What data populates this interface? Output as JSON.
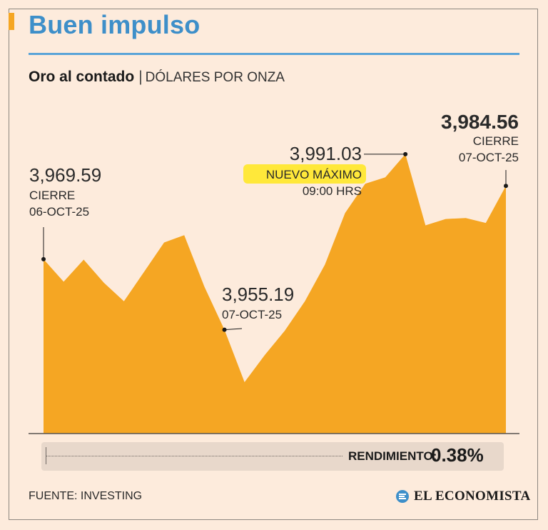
{
  "header": {
    "title": "Buen impulso",
    "subtitle_main": "Oro al contado",
    "subtitle_separator": "|",
    "subtitle_unit": "DÓLARES POR ONZA"
  },
  "chart_data": {
    "type": "area",
    "title": "Oro al contado",
    "ylabel": "DÓLARES POR ONZA",
    "xlabel": "",
    "ylim": [
      3930,
      4000
    ],
    "grid": false,
    "series": [
      {
        "name": "Oro al contado",
        "color": "#f5a623",
        "values": [
          3969.59,
          3965.0,
          3969.5,
          3964.8,
          3961.0,
          3967.0,
          3973.0,
          3974.5,
          3964.0,
          3955.19,
          3944.5,
          3950.0,
          3955.0,
          3961.0,
          3968.5,
          3979.0,
          3985.0,
          3986.3,
          3991.03,
          3976.5,
          3977.8,
          3978.0,
          3977.0,
          3984.56
        ]
      }
    ],
    "annotations": [
      {
        "id": "start",
        "index": 0,
        "lines": [
          "3,969.59",
          "CIERRE",
          "06-OCT-25"
        ]
      },
      {
        "id": "low",
        "index": 9,
        "lines": [
          "3,955.19",
          "07-OCT-25"
        ]
      },
      {
        "id": "high",
        "index": 18,
        "lines": [
          "3,991.03",
          "NUEVO MÁXIMO",
          "09:00 HRS"
        ]
      },
      {
        "id": "end",
        "index": 23,
        "lines": [
          "3,984.56",
          "CIERRE",
          "07-OCT-25"
        ]
      }
    ]
  },
  "footer": {
    "return_label": "RENDIMIENTO:",
    "return_value": "0.38%",
    "source": "FUENTE: INVESTING",
    "brand": "EL ECONOMISTA",
    "brand_icon": "el-economista-logo-icon"
  }
}
